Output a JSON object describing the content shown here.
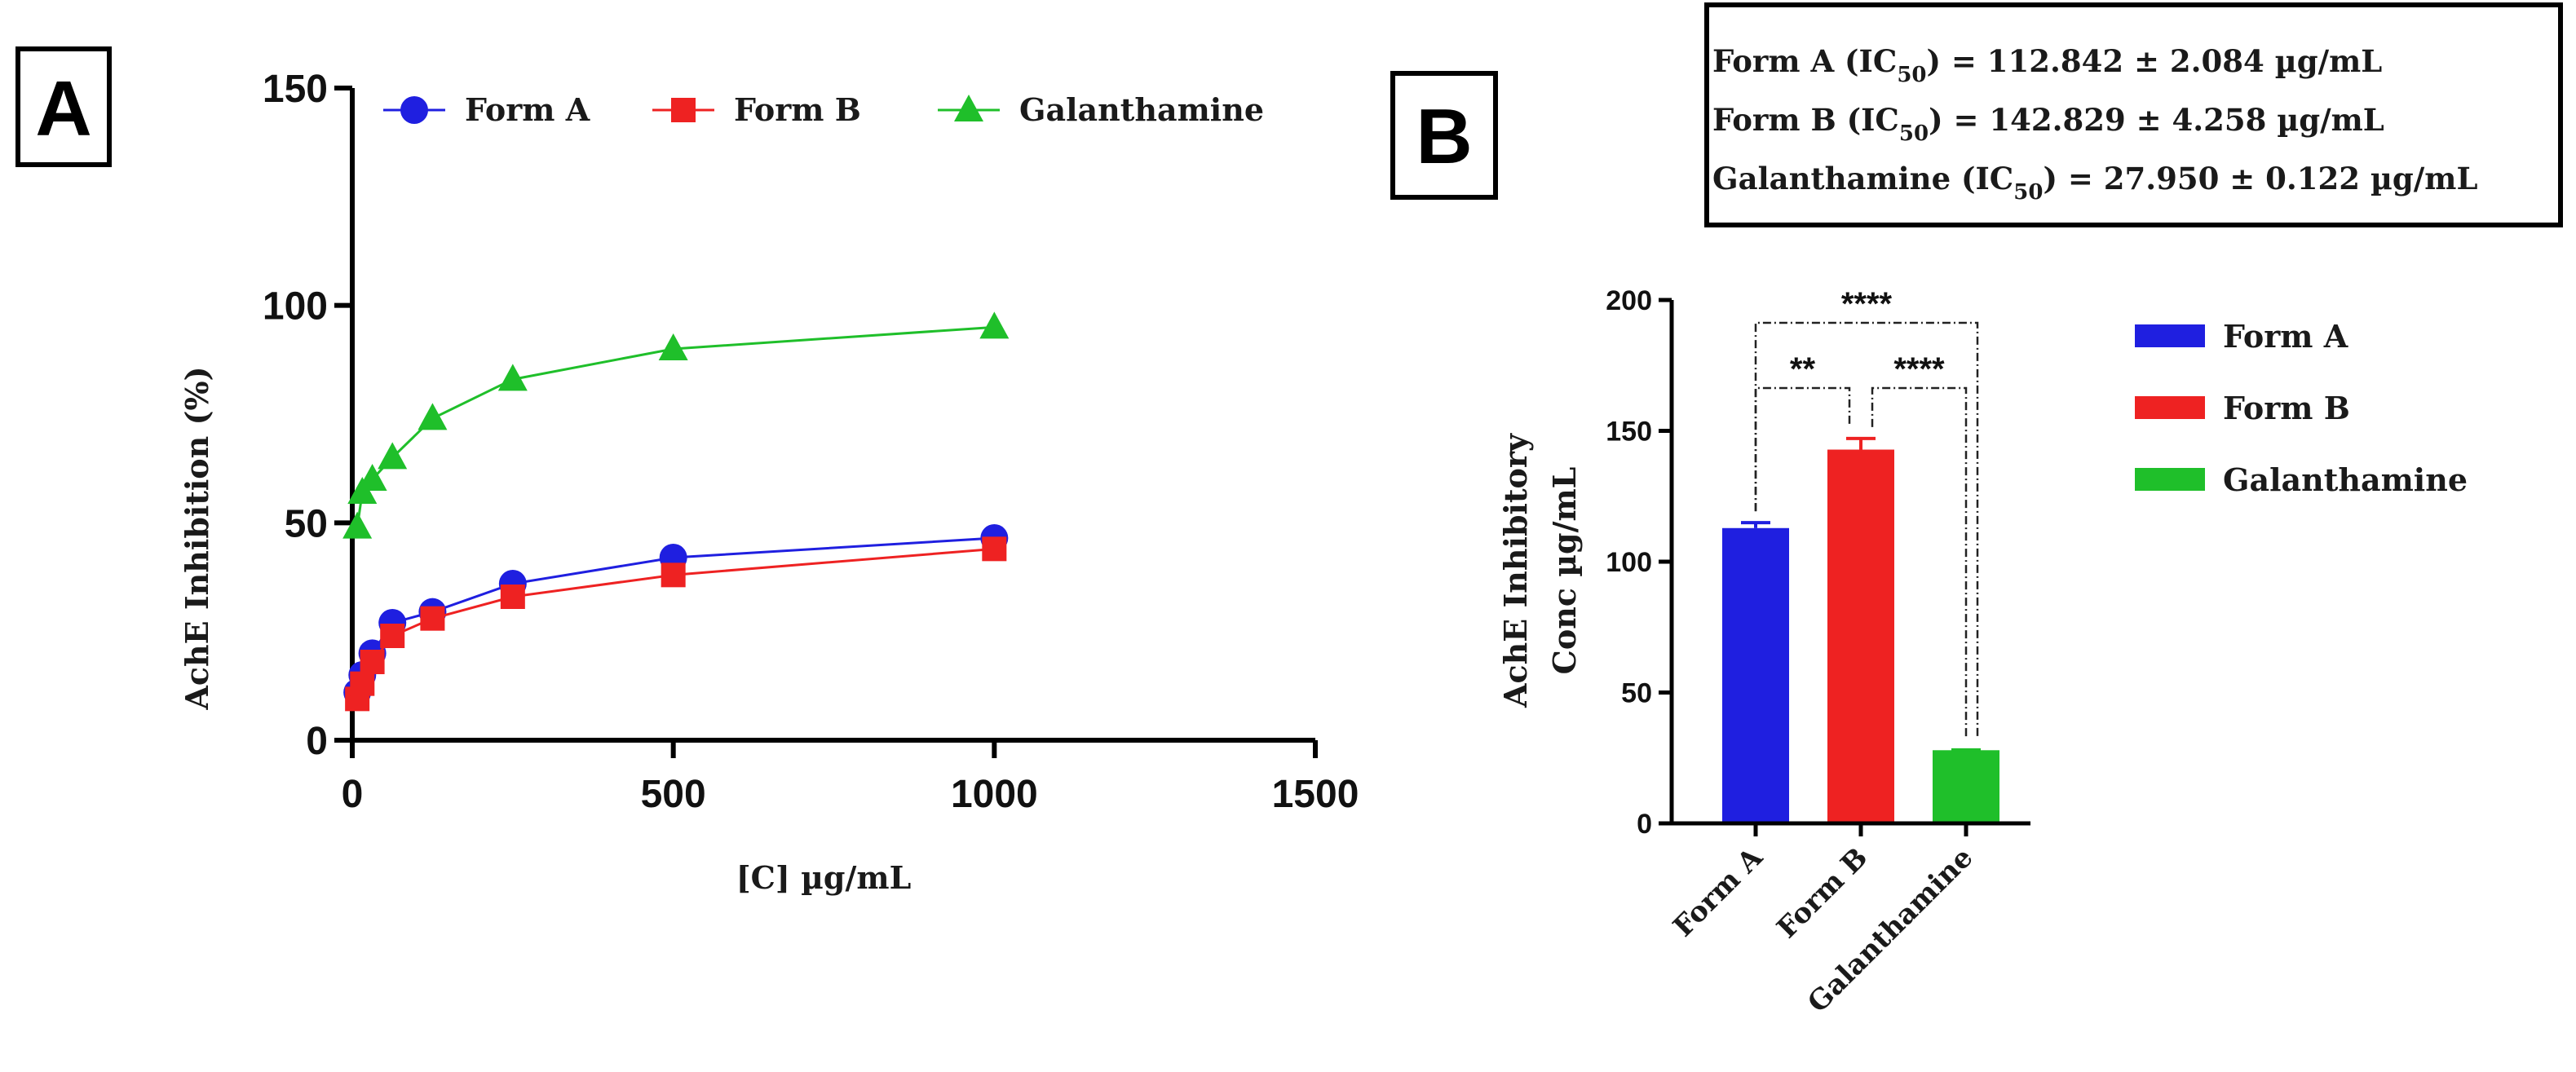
{
  "panel_a": {
    "letter": "A"
  },
  "panel_b": {
    "letter": "B",
    "ic_lines": [
      {
        "prefix": "Form A (IC",
        "sub": "50",
        "suffix": ") = 112.842 ± 2.084 µg/mL"
      },
      {
        "prefix": "Form B (IC",
        "sub": "50",
        "suffix": ") = 142.829 ± 4.258 µg/mL"
      },
      {
        "prefix": "Galanthamine (IC",
        "sub": "50",
        "suffix": ") = 27.950 ± 0.122 µg/mL"
      }
    ]
  },
  "chart_data": [
    {
      "type": "line",
      "panel": "A",
      "xlabel": "[C] µg/mL",
      "ylabel": "AchE Inhibition (%)",
      "xlim": [
        0,
        1500
      ],
      "ylim": [
        0,
        150
      ],
      "xticks": [
        0,
        500,
        1000,
        1500
      ],
      "yticks": [
        0,
        50,
        100,
        150
      ],
      "legend_position": "top",
      "series": [
        {
          "name": "Form A",
          "color": "#1f1fe0",
          "marker": "circle",
          "x": [
            7.8,
            15.6,
            31.25,
            62.5,
            125,
            250,
            500,
            1000
          ],
          "y": [
            11,
            15,
            20,
            27,
            29.5,
            36,
            42,
            46.5
          ]
        },
        {
          "name": "Form B",
          "color": "#ee2222",
          "marker": "square",
          "x": [
            7.8,
            15.6,
            31.25,
            62.5,
            125,
            250,
            500,
            1000
          ],
          "y": [
            9.5,
            13,
            18,
            24,
            28,
            33,
            38,
            44
          ]
        },
        {
          "name": "Galanthamine",
          "color": "#1fbf2a",
          "marker": "triangle",
          "x": [
            7.8,
            15.6,
            31.25,
            62.5,
            125,
            250,
            500,
            1000
          ],
          "y": [
            49,
            57,
            60,
            65,
            74,
            83,
            90,
            95
          ]
        }
      ]
    },
    {
      "type": "bar",
      "panel": "B",
      "ylabel": "AchE Inhibitory Conc µg/mL",
      "ylabel_lines": [
        "AchE Inhibitory",
        "Conc µg/mL"
      ],
      "ylim": [
        0,
        200
      ],
      "yticks": [
        0,
        50,
        100,
        150,
        200
      ],
      "categories": [
        "Form A",
        "Form B",
        "Galanthamine"
      ],
      "values": [
        112.842,
        142.829,
        27.95
      ],
      "errors": [
        2.084,
        4.258,
        0.122
      ],
      "colors": [
        "#1f1fe0",
        "#ee2222",
        "#1fbf2a"
      ],
      "legend_position": "right",
      "significance": [
        {
          "from": "Form A",
          "to": "Form B",
          "label": "**"
        },
        {
          "from": "Form B",
          "to": "Galanthamine",
          "label": "****"
        },
        {
          "from": "Form A",
          "to": "Galanthamine",
          "label": "****"
        }
      ]
    }
  ]
}
